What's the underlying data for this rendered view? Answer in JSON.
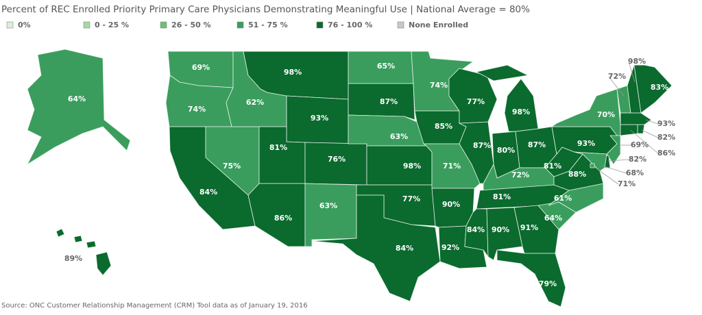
{
  "chart_data": {
    "type": "choropleth",
    "title": "Percent of REC Enrolled Priority Primary Care Physicians Demonstrating Meaningful Use | National Average = 80%",
    "legend": [
      {
        "label": "0%",
        "color": "#d9efd9"
      },
      {
        "label": "0 - 25 %",
        "color": "#a7d8a7"
      },
      {
        "label": "26 - 50 %",
        "color": "#6cc070"
      },
      {
        "label": "51 - 75 %",
        "color": "#3a9d5d"
      },
      {
        "label": "76 - 100 %",
        "color": "#0b6a2e"
      },
      {
        "label": "None Enrolled",
        "color": "#c8c8c8"
      }
    ],
    "values": [
      69,
      74,
      84,
      75,
      62,
      98,
      93,
      81,
      86,
      76,
      63,
      65,
      87,
      63,
      98,
      77,
      84,
      74,
      85,
      71,
      90,
      92,
      77,
      87,
      98,
      80,
      87,
      72,
      81,
      84,
      90,
      91,
      79,
      64,
      61,
      88,
      81,
      93,
      70,
      72,
      98,
      83,
      93,
      82,
      86,
      69,
      82,
      68,
      71,
      64,
      89
    ],
    "value_labels": [
      "69%",
      "74%",
      "84%",
      "75%",
      "62%",
      "98%",
      "93%",
      "81%",
      "86%",
      "76%",
      "63%",
      "65%",
      "87%",
      "63%",
      "98%",
      "77%",
      "84%",
      "74%",
      "85%",
      "71%",
      "90%",
      "92%",
      "77%",
      "87%",
      "98%",
      "80%",
      "87%",
      "72%",
      "81%",
      "84%",
      "90%",
      "91%",
      "79%",
      "64%",
      "61%",
      "88%",
      "81%",
      "93%",
      "70%",
      "72%",
      "98%",
      "83%",
      "93%",
      "82%",
      "86%",
      "69%",
      "82%",
      "68%",
      "71%",
      "64%",
      "89%"
    ],
    "colors": [
      "#3a9d5d",
      "#3a9d5d",
      "#0b6a2e",
      "#3a9d5d",
      "#3a9d5d",
      "#0b6a2e",
      "#0b6a2e",
      "#0b6a2e",
      "#0b6a2e",
      "#0b6a2e",
      "#3a9d5d",
      "#3a9d5d",
      "#0b6a2e",
      "#3a9d5d",
      "#0b6a2e",
      "#0b6a2e",
      "#0b6a2e",
      "#3a9d5d",
      "#0b6a2e",
      "#3a9d5d",
      "#0b6a2e",
      "#0b6a2e",
      "#0b6a2e",
      "#0b6a2e",
      "#0b6a2e",
      "#0b6a2e",
      "#0b6a2e",
      "#3a9d5d",
      "#0b6a2e",
      "#0b6a2e",
      "#0b6a2e",
      "#0b6a2e",
      "#0b6a2e",
      "#3a9d5d",
      "#3a9d5d",
      "#0b6a2e",
      "#0b6a2e",
      "#0b6a2e",
      "#3a9d5d",
      "#3a9d5d",
      "#0b6a2e",
      "#0b6a2e",
      "#0b6a2e",
      "#0b6a2e",
      "#0b6a2e",
      "#3a9d5d",
      "#0b6a2e",
      "#3a9d5d",
      "#3a9d5d",
      "#3a9d5d",
      "#0b6a2e"
    ],
    "source": "Source: ONC Customer Relationship Management (CRM) Tool data as of January 19, 2016"
  }
}
